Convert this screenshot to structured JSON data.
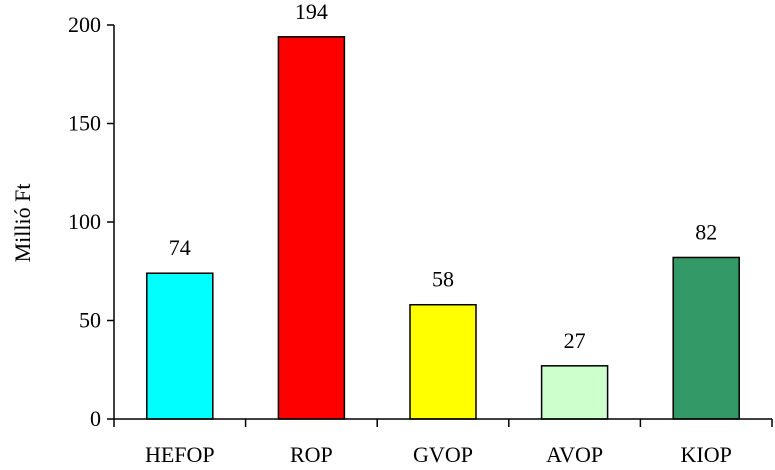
{
  "chart_data": {
    "type": "bar",
    "categories": [
      "HEFOP",
      "ROP",
      "GVOP",
      "AVOP",
      "KIOP"
    ],
    "values": [
      74,
      194,
      58,
      27,
      82
    ],
    "bar_colors": [
      "#00FFFF",
      "#FF0000",
      "#FFFF00",
      "#CCFFCC",
      "#339966"
    ],
    "data_labels": [
      "74",
      "194",
      "58",
      "27",
      "82"
    ],
    "ylabel": "Millió Ft",
    "xlabel": "",
    "ylim": [
      0,
      200
    ],
    "yticks": [
      0,
      50,
      100,
      150,
      200
    ],
    "ytick_labels": [
      "0",
      "50",
      "100",
      "150",
      "200"
    ],
    "grid": false,
    "legend": "none"
  }
}
